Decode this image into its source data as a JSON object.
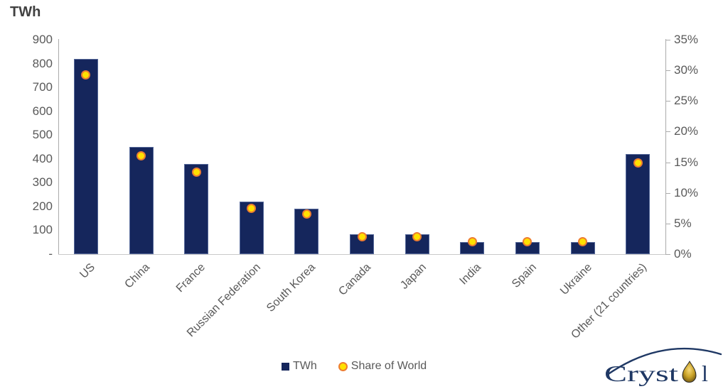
{
  "title": "TWh",
  "colors": {
    "bar": "#15265C",
    "dot_fill": "#FFE100",
    "dot_border": "#ED7D31",
    "axis_text": "#595959",
    "axis_line": "#ABABAB",
    "title_text": "#404040",
    "logo_navy": "#1F3864",
    "droplet_gold": "#C9A227"
  },
  "legend": {
    "bar_label": "TWh",
    "dot_label": "Share of World"
  },
  "logo": {
    "brand": "Crystol",
    "text_pre": "Cryst",
    "text_post": "l"
  },
  "chart_data": {
    "type": "bar",
    "title": "TWh",
    "categories": [
      "US",
      "China",
      "France",
      "Russian Federation",
      "South Korea",
      "Canada",
      "Japan",
      "India",
      "Spain",
      "Ukraine",
      "Other (21 countries)"
    ],
    "series": [
      {
        "name": "TWh",
        "type": "bar",
        "axis": "left",
        "values": [
          820,
          450,
          380,
          220,
          190,
          85,
          85,
          50,
          50,
          50,
          420
        ]
      },
      {
        "name": "Share of World",
        "type": "scatter",
        "axis": "right",
        "unit": "%",
        "values": [
          29.3,
          16.0,
          13.4,
          7.5,
          6.5,
          2.9,
          2.9,
          2.0,
          2.0,
          2.0,
          14.9
        ]
      }
    ],
    "left_axis": {
      "label": "TWh",
      "min": 0,
      "max": 900,
      "tick_step": 100,
      "ticks": [
        "900",
        "800",
        "700",
        "600",
        "500",
        "400",
        "300",
        "200",
        "100",
        "-"
      ]
    },
    "right_axis": {
      "label": "Share of World",
      "min": 0,
      "max": 35,
      "tick_step": 5,
      "ticks": [
        "35%",
        "30%",
        "25%",
        "20%",
        "15%",
        "10%",
        "5%",
        "0%"
      ]
    },
    "grid": false,
    "legend_position": "bottom-center"
  }
}
